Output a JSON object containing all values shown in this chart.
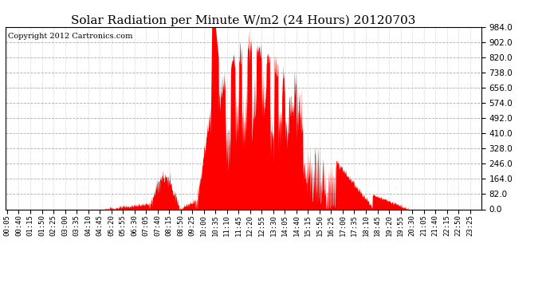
{
  "title": "Solar Radiation per Minute W/m2 (24 Hours) 20120703",
  "copyright_text": "Copyright 2012 Cartronics.com",
  "y_ticks": [
    0.0,
    82.0,
    164.0,
    246.0,
    328.0,
    410.0,
    492.0,
    574.0,
    656.0,
    738.0,
    820.0,
    902.0,
    984.0
  ],
  "y_min": 0.0,
  "y_max": 984.0,
  "fill_color": "#ff0000",
  "line_color": "#ff0000",
  "baseline_color": "#ff0000",
  "background_color": "#ffffff",
  "grid_color": "#999999",
  "title_fontsize": 11,
  "copyright_fontsize": 7,
  "tick_label_fontsize": 6.5,
  "y_tick_fontsize": 7.5
}
